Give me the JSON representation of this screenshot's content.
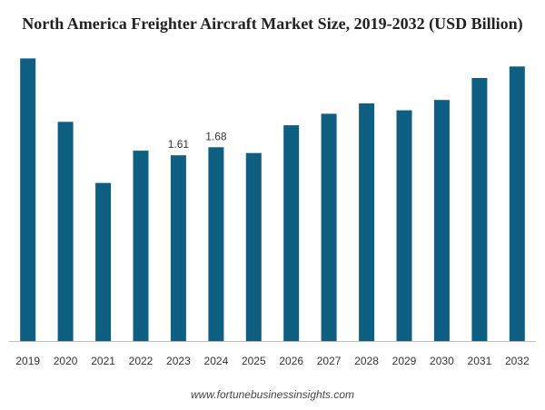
{
  "chart_data": {
    "type": "bar",
    "title": "North America Freighter Aircraft Market Size, 2019-2032 (USD Billion)",
    "categories": [
      "2019",
      "2020",
      "2021",
      "2022",
      "2023",
      "2024",
      "2025",
      "2026",
      "2027",
      "2028",
      "2029",
      "2030",
      "2031",
      "2032"
    ],
    "values": [
      2.45,
      1.9,
      1.37,
      1.65,
      1.61,
      1.68,
      1.63,
      1.87,
      1.97,
      2.06,
      2.0,
      2.09,
      2.28,
      2.38
    ],
    "data_labels": [
      {
        "category": "2023",
        "text": "1.61"
      },
      {
        "category": "2024",
        "text": "1.68"
      }
    ],
    "xlabel": "",
    "ylabel": "",
    "ylim": [
      0,
      2.5
    ],
    "bar_color": "#0e5f82",
    "axis_color": "#bfbfbf",
    "grid": false,
    "legend": "none"
  },
  "source": "www.fortunebusinessinsights.com"
}
